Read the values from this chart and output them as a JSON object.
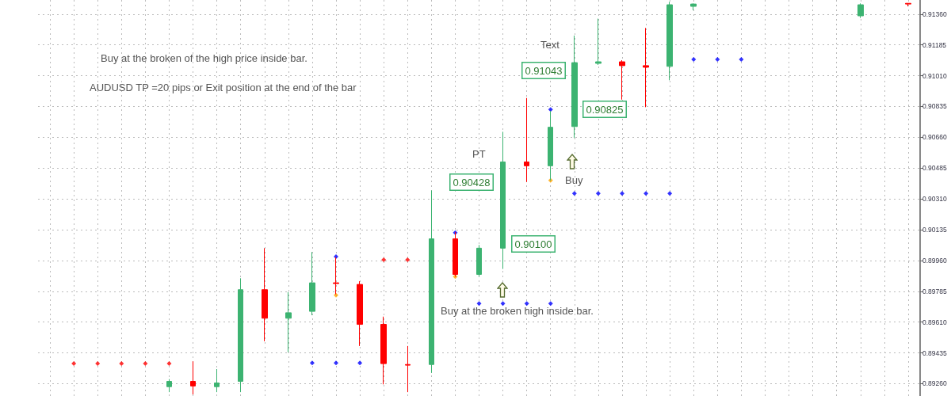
{
  "chart_data": {
    "type": "candlestick",
    "categories": [
      null,
      null,
      null,
      null,
      null,
      null,
      null,
      null,
      null,
      null,
      null,
      null,
      null,
      null,
      null,
      null,
      null,
      null,
      null,
      null,
      null,
      null,
      null,
      null,
      null,
      null,
      null,
      null,
      null,
      null,
      null,
      null,
      null,
      null,
      null,
      null,
      null
    ],
    "ohlc": [
      null,
      null,
      null,
      null,
      null,
      [
        0.89243,
        0.89286,
        0.89212,
        0.89273
      ],
      [
        0.89273,
        0.89387,
        0.89199,
        0.89247
      ],
      [
        0.89243,
        0.89343,
        0.89212,
        0.89264
      ],
      [
        0.89273,
        0.89859,
        0.89212,
        0.89794
      ],
      [
        0.89794,
        0.9003,
        0.89501,
        0.89632
      ],
      [
        0.89632,
        0.89781,
        0.89439,
        0.89663
      ],
      [
        0.89671,
        0.90008,
        0.89649,
        0.89833
      ],
      [
        0.89833,
        0.89978,
        0.89768,
        0.89829
      ],
      [
        0.89824,
        0.89842,
        0.89474,
        0.89597
      ],
      [
        0.89597,
        0.89641,
        0.89256,
        0.89374
      ],
      [
        0.89369,
        0.89474,
        0.89212,
        0.89365
      ],
      [
        0.89369,
        0.90358,
        0.89321,
        0.90083
      ],
      [
        0.90083,
        0.90122,
        0.89868,
        0.89881
      ],
      [
        0.89881,
        0.90048,
        0.89868,
        0.9003
      ],
      [
        0.9003,
        0.90691,
        0.89912,
        0.9052
      ],
      [
        0.9052,
        0.90883,
        0.90406,
        0.90498
      ],
      [
        0.90498,
        0.90809,
        0.90415,
        0.90717
      ],
      [
        0.90721,
        0.91238,
        0.90656,
        0.91084
      ],
      [
        0.9108,
        0.91334,
        0.91071,
        0.91089
      ],
      [
        0.91089,
        0.91098,
        0.90874,
        0.91067
      ],
      [
        0.91067,
        0.91281,
        0.90831,
        0.91058
      ],
      [
        0.91063,
        0.9143,
        0.90984,
        0.91413
      ],
      [
        0.91404,
        0.91421,
        0.91382,
        0.91417
      ],
      null,
      null,
      null,
      null,
      null,
      null,
      [
        0.9135,
        0.91421,
        0.91338,
        0.91413
      ],
      null,
      [
        0.91421,
        0.91421,
        0.91404,
        0.91417
      ]
    ],
    "colors": [
      null,
      null,
      null,
      null,
      null,
      "#3cb371",
      "#ff0000",
      "#3cb371",
      "#3cb371",
      "#ff0000",
      "#3cb371",
      "#3cb371",
      "#ff0000",
      "#ff0000",
      "#ff0000",
      "#ff0000",
      "#3cb371",
      "#ff0000",
      "#3cb371",
      "#3cb371",
      "#ff0000",
      "#3cb371",
      "#3cb371",
      "#3cb371",
      "#ff0000",
      "#ff0000",
      "#3cb371",
      "#3cb371",
      null,
      null,
      null,
      null,
      null,
      null,
      "#3cb371",
      null,
      "#ff0000"
    ],
    "series": [
      {
        "type": "scatter",
        "color": "#ff0000",
        "values": [
          null,
          0.89374,
          0.89374,
          0.89374,
          0.89374,
          0.89374,
          null,
          null,
          null,
          null,
          null,
          null,
          null,
          null,
          0.89964,
          0.89964,
          null,
          null,
          null,
          null,
          null,
          null,
          null,
          null,
          null,
          null,
          null,
          null,
          null,
          null,
          null,
          null,
          null,
          null,
          null,
          null,
          null
        ]
      },
      {
        "type": "scatter",
        "color": "#0000ff",
        "values": [
          null,
          null,
          null,
          null,
          null,
          null,
          null,
          null,
          null,
          null,
          null,
          0.89378,
          0.89378,
          0.89378,
          null,
          null,
          null,
          0.90118,
          0.89715,
          0.89715,
          0.89715,
          0.89715,
          0.90341,
          0.90341,
          0.90341,
          0.90341,
          0.90341,
          0.91102,
          0.91102,
          0.91102,
          null,
          null,
          null,
          null,
          null,
          null,
          null
        ]
      },
      {
        "type": "scatter",
        "color": "#0000ff",
        "values": [
          null,
          null,
          null,
          null,
          null,
          null,
          null,
          null,
          null,
          null,
          null,
          null,
          0.89982,
          null,
          null,
          null,
          null,
          null,
          null,
          null,
          null,
          0.90818,
          null,
          null,
          null,
          null,
          null,
          null,
          null,
          null,
          null,
          null,
          null,
          null,
          null,
          null,
          null
        ]
      },
      {
        "type": "scatter",
        "color": "#ffa500",
        "values": [
          null,
          null,
          null,
          null,
          null,
          null,
          null,
          null,
          null,
          null,
          null,
          null,
          0.89763,
          null,
          null,
          null,
          null,
          0.89868,
          null,
          null,
          null,
          0.90415,
          null,
          null,
          null,
          null,
          null,
          null,
          null,
          null,
          null,
          null,
          null,
          null,
          null,
          null,
          null
        ]
      }
    ],
    "marker": "diamond",
    "ylim": [
      0.8919,
      0.9144
    ],
    "yticks": [
      {
        "value": 0.8926,
        "label": "0.89260"
      },
      0.89435,
      {
        "value": 0.8961,
        "label": "0.89610"
      },
      0.89785,
      {
        "value": 0.8996,
        "label": "0.89960"
      },
      0.90135,
      {
        "value": 0.9031,
        "label": "0.90310"
      },
      0.90485,
      {
        "value": 0.9066,
        "label": "0.90660"
      },
      0.90835,
      {
        "value": 0.9101,
        "label": "0.91010"
      },
      0.91185,
      {
        "value": 0.9136,
        "label": "0.91360"
      }
    ],
    "grid": true,
    "tick_labels": "y",
    "annotations": [
      "Buy at the broken of the high price inside bar.",
      "AUDUSD TP =20 pips or Exit position at the end of the bar",
      "Text",
      "0.91043",
      "0.90825",
      "PT",
      "0.90428",
      "0.90100",
      "Buy",
      "Buy at the broken high inside bar."
    ]
  }
}
